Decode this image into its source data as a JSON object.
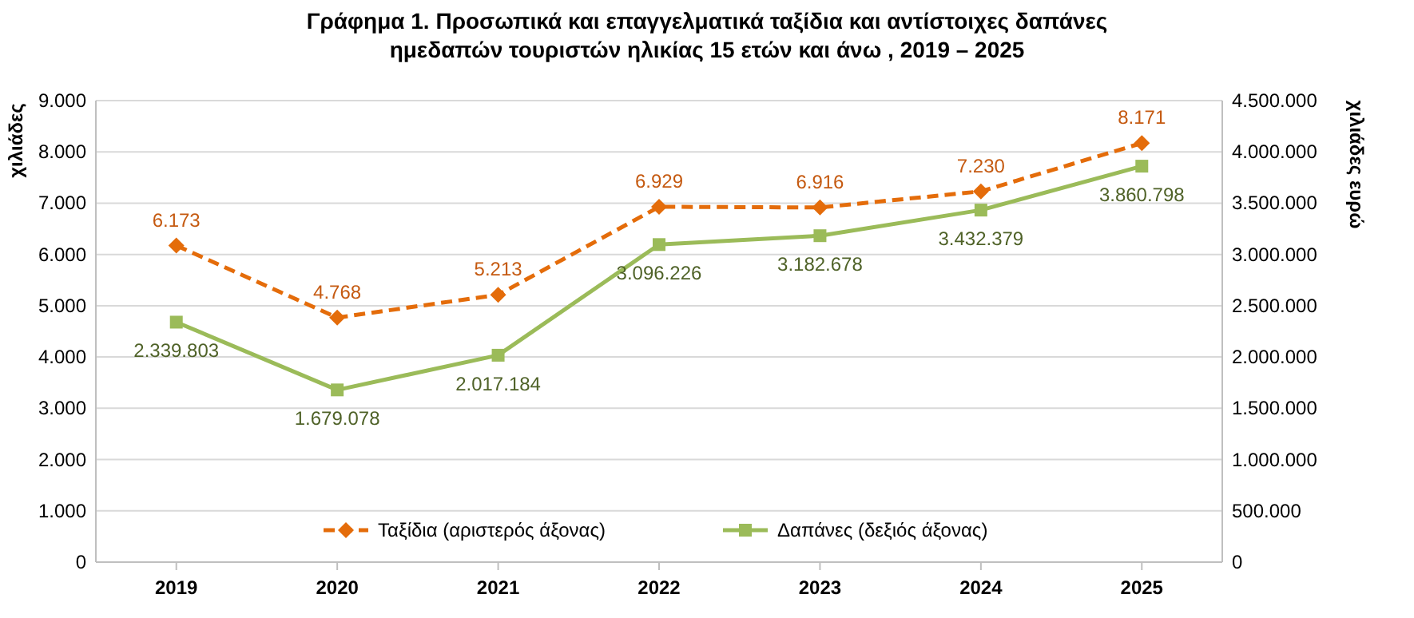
{
  "chart_data": {
    "type": "line",
    "title": "Γράφημα 1. Προσωπικά και επαγγελματικά ταξίδια και αντίστοιχες δαπάνες\nημεδαπών τουριστών ηλικίας 15 ετών και άνω , 2019 – 2025",
    "ylabel": "χιλιάδες",
    "y2label": "χιλιάδες ευρώ",
    "categories": [
      "2019",
      "2020",
      "2021",
      "2022",
      "2023",
      "2024",
      "2025"
    ],
    "series": [
      {
        "name": "Ταξίδια (αριστερός άξονας)",
        "color": "#e46c0a",
        "marker": "diamond",
        "line_style": "dashed",
        "values": [
          6173,
          4768,
          5213,
          6929,
          6916,
          7230,
          8171
        ],
        "value_labels": [
          "6.173",
          "4.768",
          "5.213",
          "6.929",
          "6.916",
          "7.230",
          "8.171"
        ]
      },
      {
        "name": "Δαπάνες (δεξιός άξονας)",
        "color": "#9bbb59",
        "marker": "square",
        "line_style": "solid",
        "axis": "y2",
        "values": [
          2339803,
          1679078,
          2017184,
          3096226,
          3182678,
          3432379,
          3860798
        ],
        "value_labels": [
          "2.339.803",
          "1.679.078",
          "2.017.184",
          "3.096.226",
          "3.182.678",
          "3.432.379",
          "3.860.798"
        ]
      }
    ],
    "ylim": [
      0,
      9000
    ],
    "yticks": [
      {
        "value": 0,
        "label": "0"
      },
      {
        "value": 1000,
        "label": "1.000"
      },
      {
        "value": 2000,
        "label": "2.000"
      },
      {
        "value": 3000,
        "label": "3.000"
      },
      {
        "value": 4000,
        "label": "4.000"
      },
      {
        "value": 5000,
        "label": "5.000"
      },
      {
        "value": 6000,
        "label": "6.000"
      },
      {
        "value": 7000,
        "label": "7.000"
      },
      {
        "value": 8000,
        "label": "8.000"
      },
      {
        "value": 9000,
        "label": "9.000"
      }
    ],
    "y2lim": [
      0,
      4500000
    ],
    "y2ticks": [
      {
        "value": 0,
        "label": "0"
      },
      {
        "value": 500000,
        "label": "500.000"
      },
      {
        "value": 1000000,
        "label": "1.000.000"
      },
      {
        "value": 1500000,
        "label": "1.500.000"
      },
      {
        "value": 2000000,
        "label": "2.000.000"
      },
      {
        "value": 2500000,
        "label": "2.500.000"
      },
      {
        "value": 3000000,
        "label": "3.000.000"
      },
      {
        "value": 3500000,
        "label": "3.500.000"
      },
      {
        "value": 4000000,
        "label": "4.000.000"
      },
      {
        "value": 4500000,
        "label": "4.500.000"
      }
    ],
    "grid": "y",
    "legend": "bottom"
  }
}
